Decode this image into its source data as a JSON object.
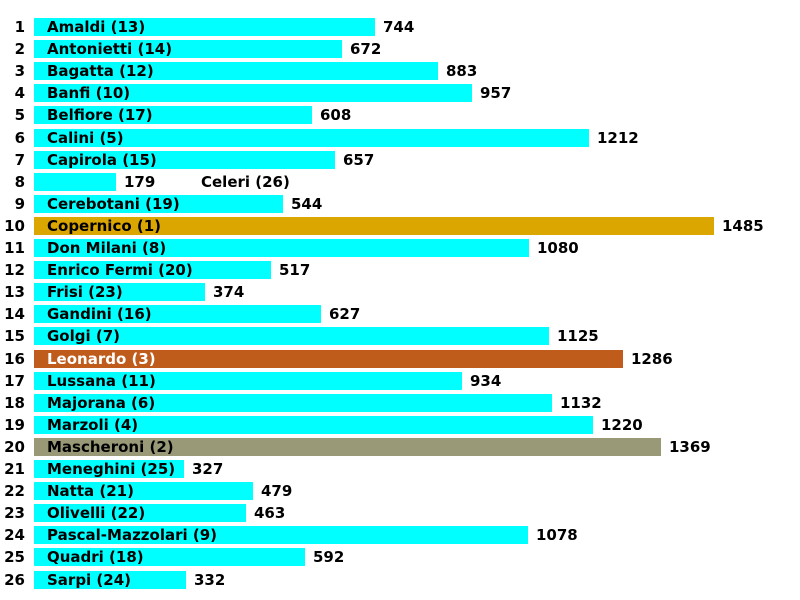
{
  "chart_data": {
    "type": "bar",
    "orientation": "horizontal",
    "title": "",
    "xlim": [
      0,
      1485
    ],
    "colors": {
      "default": "#00ffff",
      "first": "#dca600",
      "second": "#999977",
      "third": "#bf5b1b"
    },
    "rows": [
      {
        "rank": "1",
        "name": "Amaldi (13)",
        "value": 744,
        "color": "default"
      },
      {
        "rank": "2",
        "name": "Antonietti (14)",
        "value": 672,
        "color": "default"
      },
      {
        "rank": "3",
        "name": "Bagatta (12)",
        "value": 883,
        "color": "default"
      },
      {
        "rank": "4",
        "name": "Banfi (10)",
        "value": 957,
        "color": "default"
      },
      {
        "rank": "5",
        "name": "Belfiore (17)",
        "value": 608,
        "color": "default"
      },
      {
        "rank": "6",
        "name": "Calini (5)",
        "value": 1212,
        "color": "default"
      },
      {
        "rank": "7",
        "name": "Capirola (15)",
        "value": 657,
        "color": "default"
      },
      {
        "rank": "8",
        "name": "Celeri (26)",
        "value": 179,
        "color": "default"
      },
      {
        "rank": "9",
        "name": "Cerebotani (19)",
        "value": 544,
        "color": "default"
      },
      {
        "rank": "10",
        "name": "Copernico (1)",
        "value": 1485,
        "color": "first"
      },
      {
        "rank": "11",
        "name": "Don Milani (8)",
        "value": 1080,
        "color": "default"
      },
      {
        "rank": "12",
        "name": "Enrico Fermi (20)",
        "value": 517,
        "color": "default"
      },
      {
        "rank": "13",
        "name": "Frisi (23)",
        "value": 374,
        "color": "default"
      },
      {
        "rank": "14",
        "name": "Gandini (16)",
        "value": 627,
        "color": "default"
      },
      {
        "rank": "15",
        "name": "Golgi (7)",
        "value": 1125,
        "color": "default"
      },
      {
        "rank": "16",
        "name": "Leonardo (3)",
        "value": 1286,
        "color": "third"
      },
      {
        "rank": "17",
        "name": "Lussana (11)",
        "value": 934,
        "color": "default"
      },
      {
        "rank": "18",
        "name": "Majorana (6)",
        "value": 1132,
        "color": "default"
      },
      {
        "rank": "19",
        "name": "Marzoli (4)",
        "value": 1220,
        "color": "default"
      },
      {
        "rank": "20",
        "name": "Mascheroni (2)",
        "value": 1369,
        "color": "second"
      },
      {
        "rank": "21",
        "name": "Meneghini (25)",
        "value": 327,
        "color": "default"
      },
      {
        "rank": "22",
        "name": "Natta (21)",
        "value": 479,
        "color": "default"
      },
      {
        "rank": "23",
        "name": "Olivelli (22)",
        "value": 463,
        "color": "default"
      },
      {
        "rank": "24",
        "name": "Pascal-Mazzolari (9)",
        "value": 1078,
        "color": "default"
      },
      {
        "rank": "25",
        "name": "Quadri (18)",
        "value": 592,
        "color": "default"
      },
      {
        "rank": "26",
        "name": "Sarpi (24)",
        "value": 332,
        "color": "default"
      }
    ]
  }
}
